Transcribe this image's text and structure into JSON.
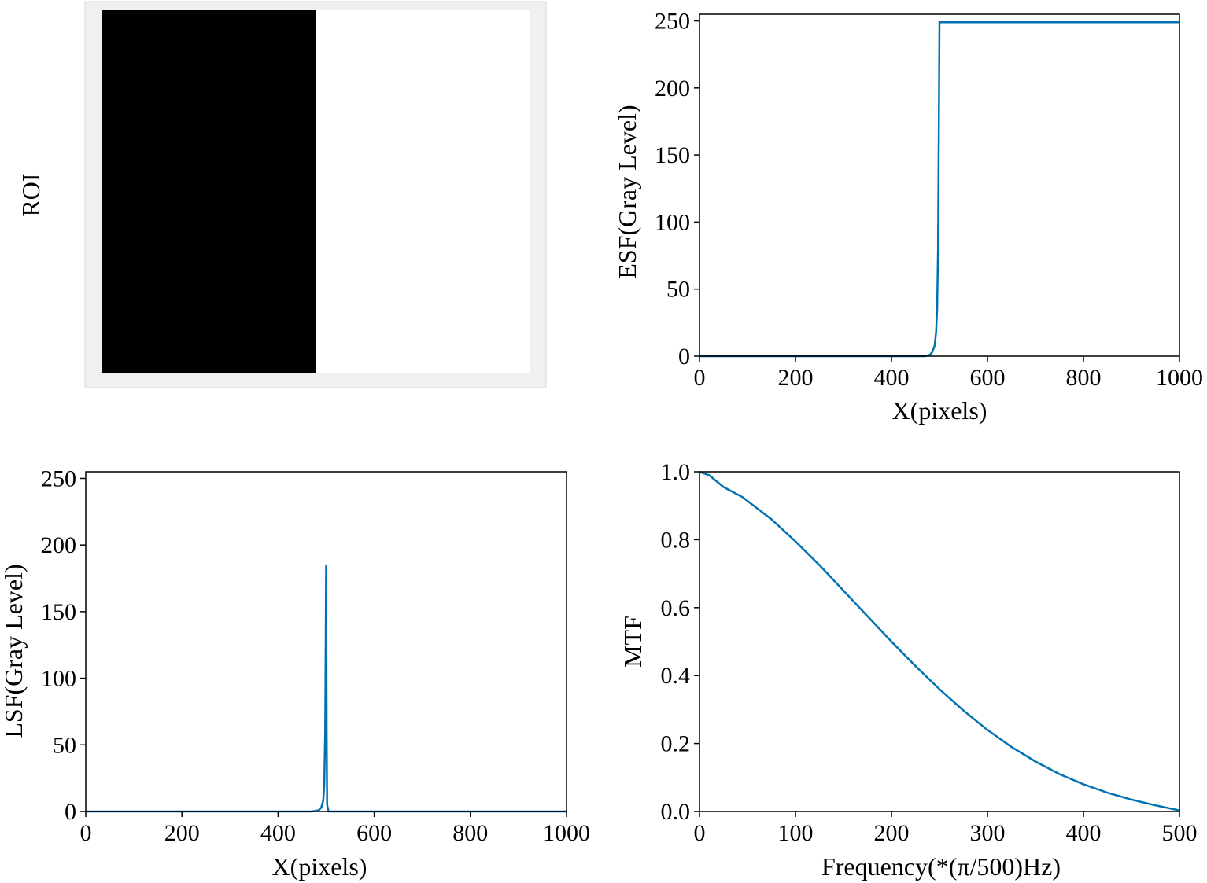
{
  "chart_data": [
    {
      "id": "roi",
      "type": "image",
      "ylabel": "ROI",
      "left_color": "#000000",
      "right_color": "#ffffff",
      "border_color": "#f0f0f0",
      "edge_fraction": 0.5
    },
    {
      "id": "esf",
      "type": "line",
      "xlabel": "X(pixels)",
      "ylabel": "ESF(Gray Level)",
      "xlim": [
        0,
        1000
      ],
      "ylim": [
        0,
        255
      ],
      "xticks": [
        0,
        200,
        400,
        600,
        800,
        1000
      ],
      "yticks": [
        0,
        50,
        100,
        150,
        200,
        250
      ],
      "series": [
        {
          "color": "#0072b2",
          "x": [
            0,
            400,
            470,
            480,
            485,
            490,
            493,
            495,
            497,
            499,
            500,
            1000
          ],
          "y": [
            0,
            0,
            0,
            1,
            3,
            8,
            18,
            35,
            80,
            190,
            249,
            249
          ]
        }
      ]
    },
    {
      "id": "lsf",
      "type": "line",
      "xlabel": "X(pixels)",
      "ylabel": "LSF(Gray Level)",
      "xlim": [
        0,
        1000
      ],
      "ylim": [
        0,
        255
      ],
      "xticks": [
        0,
        200,
        400,
        600,
        800,
        1000
      ],
      "yticks": [
        0,
        50,
        100,
        150,
        200,
        250
      ],
      "series": [
        {
          "color": "#0072b2",
          "x": [
            0,
            470,
            485,
            490,
            494,
            496,
            498,
            499,
            500,
            501,
            502,
            505,
            1000
          ],
          "y": [
            0,
            0,
            1,
            3,
            8,
            20,
            60,
            120,
            185,
            60,
            5,
            0,
            0
          ]
        }
      ]
    },
    {
      "id": "mtf",
      "type": "line",
      "xlabel": "Frequency(*(π/500)Hz)",
      "ylabel": "MTF",
      "xlim": [
        0,
        500
      ],
      "ylim": [
        0,
        1.0
      ],
      "xticks": [
        0,
        100,
        200,
        300,
        400,
        500
      ],
      "yticks": [
        "0.0",
        "0.2",
        "0.4",
        "0.6",
        "0.8",
        "1.0"
      ],
      "series": [
        {
          "color": "#0072b2",
          "x": [
            0,
            10,
            25,
            45,
            75,
            100,
            125,
            150,
            175,
            200,
            225,
            250,
            275,
            300,
            325,
            350,
            375,
            400,
            425,
            450,
            475,
            500
          ],
          "y": [
            1.0,
            0.99,
            0.955,
            0.925,
            0.86,
            0.795,
            0.725,
            0.65,
            0.575,
            0.5,
            0.428,
            0.36,
            0.297,
            0.24,
            0.19,
            0.147,
            0.11,
            0.08,
            0.055,
            0.035,
            0.018,
            0.003
          ]
        }
      ]
    }
  ]
}
